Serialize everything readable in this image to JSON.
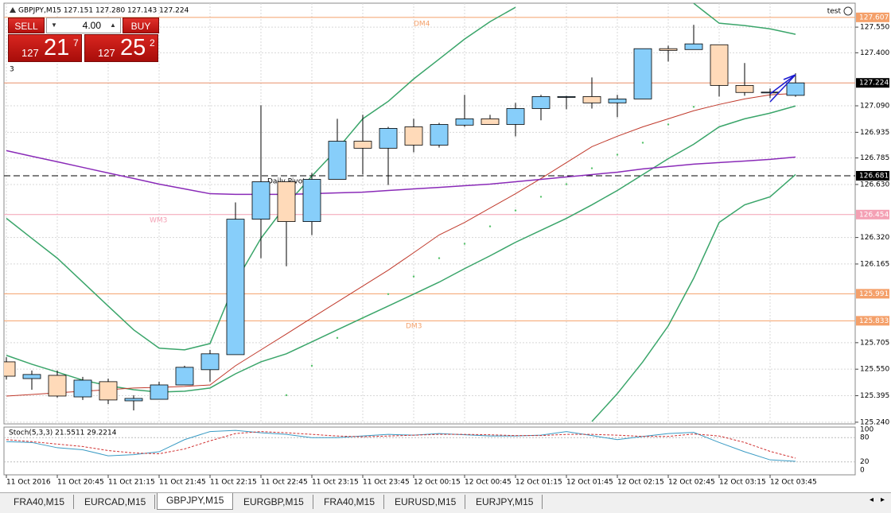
{
  "window": {
    "symbol_info": "GBPJPY,M15  127.151 127.280 127.143 127.224",
    "account": "test",
    "tabs": [
      "FRA40,M15",
      "EURCAD,M15",
      "GBPJPY,M15",
      "EURGBP,M15",
      "FRA40,M15",
      "EURUSD,M15",
      "EURJPY,M15"
    ],
    "active_tab": 2
  },
  "trade_panel": {
    "sell": "SELL",
    "buy": "BUY",
    "lots": "4.00",
    "sell_price": {
      "big": "127",
      "main": "21",
      "small": "7"
    },
    "buy_price": {
      "big": "127",
      "main": "25",
      "small": "2"
    },
    "orders_note": "3"
  },
  "chart_data": {
    "type": "candlestick",
    "categories": [
      "11 Oct 2016",
      null,
      "11 Oct 20:45",
      null,
      "11 Oct 21:15",
      null,
      "11 Oct 21:45",
      null,
      "11 Oct 22:15",
      null,
      "11 Oct 22:45",
      null,
      "11 Oct 23:15",
      null,
      "11 Oct 23:45",
      null,
      "12 Oct 00:15",
      null,
      "12 Oct 00:45",
      null,
      "12 Oct 01:15",
      null,
      "12 Oct 01:45",
      null,
      "12 Oct 02:15",
      null,
      "12 Oct 02:45",
      null,
      "12 Oct 03:15",
      null,
      "12 Oct 03:45",
      null
    ],
    "open": [
      125.593,
      125.495,
      125.514,
      125.388,
      125.477,
      125.365,
      125.374,
      125.458,
      125.547,
      125.635,
      126.427,
      126.646,
      126.413,
      126.66,
      126.883,
      126.842,
      126.967,
      126.86,
      126.977,
      127.014,
      126.981,
      127.074,
      127.139,
      127.144,
      127.107,
      127.13,
      127.424,
      127.419,
      127.447,
      127.209,
      127.168,
      127.151
    ],
    "high": [
      125.62,
      125.542,
      125.542,
      125.505,
      125.495,
      125.398,
      125.477,
      125.57,
      125.663,
      126.525,
      127.093,
      126.646,
      126.697,
      127.014,
      127.037,
      126.967,
      127.014,
      126.99,
      127.154,
      127.037,
      127.107,
      127.154,
      127.148,
      127.256,
      127.154,
      127.424,
      127.442,
      127.563,
      127.447,
      127.34,
      127.191,
      127.28
    ],
    "low": [
      125.49,
      125.43,
      125.384,
      125.37,
      125.346,
      125.309,
      125.374,
      125.458,
      125.477,
      125.635,
      126.199,
      126.152,
      126.334,
      126.66,
      126.688,
      126.627,
      126.818,
      126.846,
      126.967,
      126.981,
      126.911,
      127.005,
      127.07,
      127.074,
      127.023,
      127.13,
      127.349,
      127.419,
      127.144,
      127.149,
      127.135,
      127.143
    ],
    "close": [
      125.509,
      125.519,
      125.393,
      125.486,
      125.37,
      125.379,
      125.458,
      125.561,
      125.64,
      126.427,
      126.646,
      126.413,
      126.66,
      126.883,
      126.842,
      126.958,
      126.86,
      126.981,
      127.014,
      126.981,
      127.074,
      127.144,
      127.144,
      127.107,
      127.13,
      127.424,
      127.414,
      127.452,
      127.209,
      127.168,
      127.17,
      127.224
    ],
    "up_color": "#87cefa",
    "down_color": "#ffdab9",
    "ylim": [
      125.23,
      127.69
    ],
    "yticks": [
      {
        "value": 127.55,
        "label": "127.550"
      },
      {
        "value": 127.4,
        "label": "127.400"
      },
      {
        "value": 127.09,
        "label": "127.090"
      },
      126.935,
      126.785,
      {
        "value": 126.63,
        "label": "126.630"
      },
      {
        "value": 126.32,
        "label": "126.320"
      },
      126.165,
      125.705,
      {
        "value": 125.55,
        "label": "125.550"
      },
      125.395,
      {
        "value": 125.24,
        "label": "125.240"
      }
    ],
    "grid": true,
    "indicators": [
      {
        "color": "#3aa56a",
        "values": [
          126.432,
          126.315,
          126.199,
          126.059,
          125.919,
          125.78,
          125.673,
          125.663,
          125.7,
          126.059,
          126.315,
          126.511,
          126.679,
          126.837,
          127.014,
          127.116,
          127.247,
          127.363,
          127.48,
          127.582,
          127.666,
          null,
          null,
          null,
          null,
          null,
          null,
          127.689,
          127.573,
          127.559,
          127.54,
          127.508
        ]
      },
      {
        "color": "#3aa56a",
        "values": [
          125.631,
          125.579,
          125.533,
          125.486,
          125.454,
          125.43,
          125.416,
          125.421,
          125.44,
          125.523,
          125.593,
          125.64,
          125.71,
          125.78,
          125.85,
          125.919,
          125.989,
          126.059,
          126.138,
          126.213,
          126.292,
          126.362,
          126.432,
          126.511,
          126.595,
          126.688,
          126.781,
          126.865,
          126.967,
          127.014,
          127.047,
          127.089
        ]
      },
      {
        "color": "#3aa56a",
        "values": [
          null,
          null,
          null,
          null,
          null,
          null,
          null,
          null,
          null,
          null,
          null,
          null,
          null,
          null,
          null,
          null,
          null,
          null,
          null,
          null,
          null,
          null,
          null,
          125.244,
          125.407,
          125.593,
          125.803,
          126.082,
          126.408,
          126.511,
          126.558,
          126.688
        ]
      },
      {
        "color": "#c0392b",
        "values": [
          125.393,
          125.402,
          125.412,
          125.421,
          125.43,
          125.44,
          125.444,
          125.449,
          125.458,
          125.57,
          125.663,
          125.756,
          125.85,
          125.943,
          126.036,
          126.129,
          126.231,
          126.335,
          126.408,
          126.492,
          126.576,
          126.665,
          126.758,
          126.851,
          126.912,
          126.967,
          127.014,
          127.061,
          127.098,
          127.13,
          127.154,
          127.163
        ]
      },
      {
        "color": "#8a2bb8",
        "values": [
          126.828,
          126.795,
          126.763,
          126.73,
          126.697,
          126.665,
          126.632,
          126.604,
          126.576,
          126.572,
          126.572,
          126.572,
          126.576,
          126.581,
          126.585,
          126.595,
          126.604,
          126.613,
          126.623,
          126.632,
          126.646,
          126.66,
          126.674,
          126.688,
          126.702,
          126.721,
          126.735,
          126.749,
          126.758,
          126.767,
          126.777,
          126.79
        ]
      }
    ],
    "sar": {
      "color": "#55c26a",
      "values": [
        null,
        null,
        null,
        null,
        null,
        null,
        null,
        null,
        null,
        null,
        null,
        125.398,
        125.57,
        125.733,
        125.85,
        125.989,
        126.092,
        126.199,
        126.283,
        126.385,
        126.478,
        126.558,
        126.632,
        126.725,
        126.804,
        126.874,
        126.981,
        127.084,
        null,
        null,
        null,
        null
      ]
    },
    "levels": [
      {
        "value": 127.607,
        "color": "#f4a06a"
      },
      {
        "value": 127.224,
        "color": "#000000",
        "line_color": "#e8906a"
      },
      {
        "value": 126.681,
        "color": "#000000",
        "dashed": true
      },
      {
        "value": 126.454,
        "color": "#f4a0b4"
      },
      {
        "value": 125.991,
        "color": "#f4a06a"
      },
      {
        "value": 125.833,
        "color": "#f4a06a"
      }
    ],
    "annotations": [
      {
        "text": "DM4",
        "color": "#f4a06a"
      },
      {
        "text": "Daily Pivot",
        "color": "#000000"
      },
      {
        "text": "WM3",
        "color": "#f4a0b4"
      },
      {
        "text": "DM3",
        "color": "#f4a06a"
      }
    ],
    "stochastic": {
      "label": "Stoch(5,3,3) 21.5511 29.2214",
      "ylim": [
        -12,
        106
      ],
      "yticks": [
        100,
        80,
        20,
        0
      ],
      "main": {
        "color": "#3a9bc4",
        "values": [
          70,
          68,
          55,
          50,
          35,
          38,
          45,
          75,
          95,
          98,
          92,
          88,
          80,
          80,
          84,
          88,
          86,
          90,
          87,
          84,
          84,
          86,
          95,
          85,
          75,
          83,
          90,
          93,
          68,
          45,
          25,
          21.5511
        ]
      },
      "signal": {
        "color": "#d03030",
        "values": [
          75,
          70,
          64,
          58,
          48,
          42,
          40,
          52,
          72,
          90,
          95,
          92,
          88,
          84,
          82,
          84,
          86,
          88,
          88,
          87,
          85,
          85,
          88,
          88,
          86,
          83,
          83,
          89,
          84,
          68,
          46,
          29.2214
        ]
      }
    }
  }
}
